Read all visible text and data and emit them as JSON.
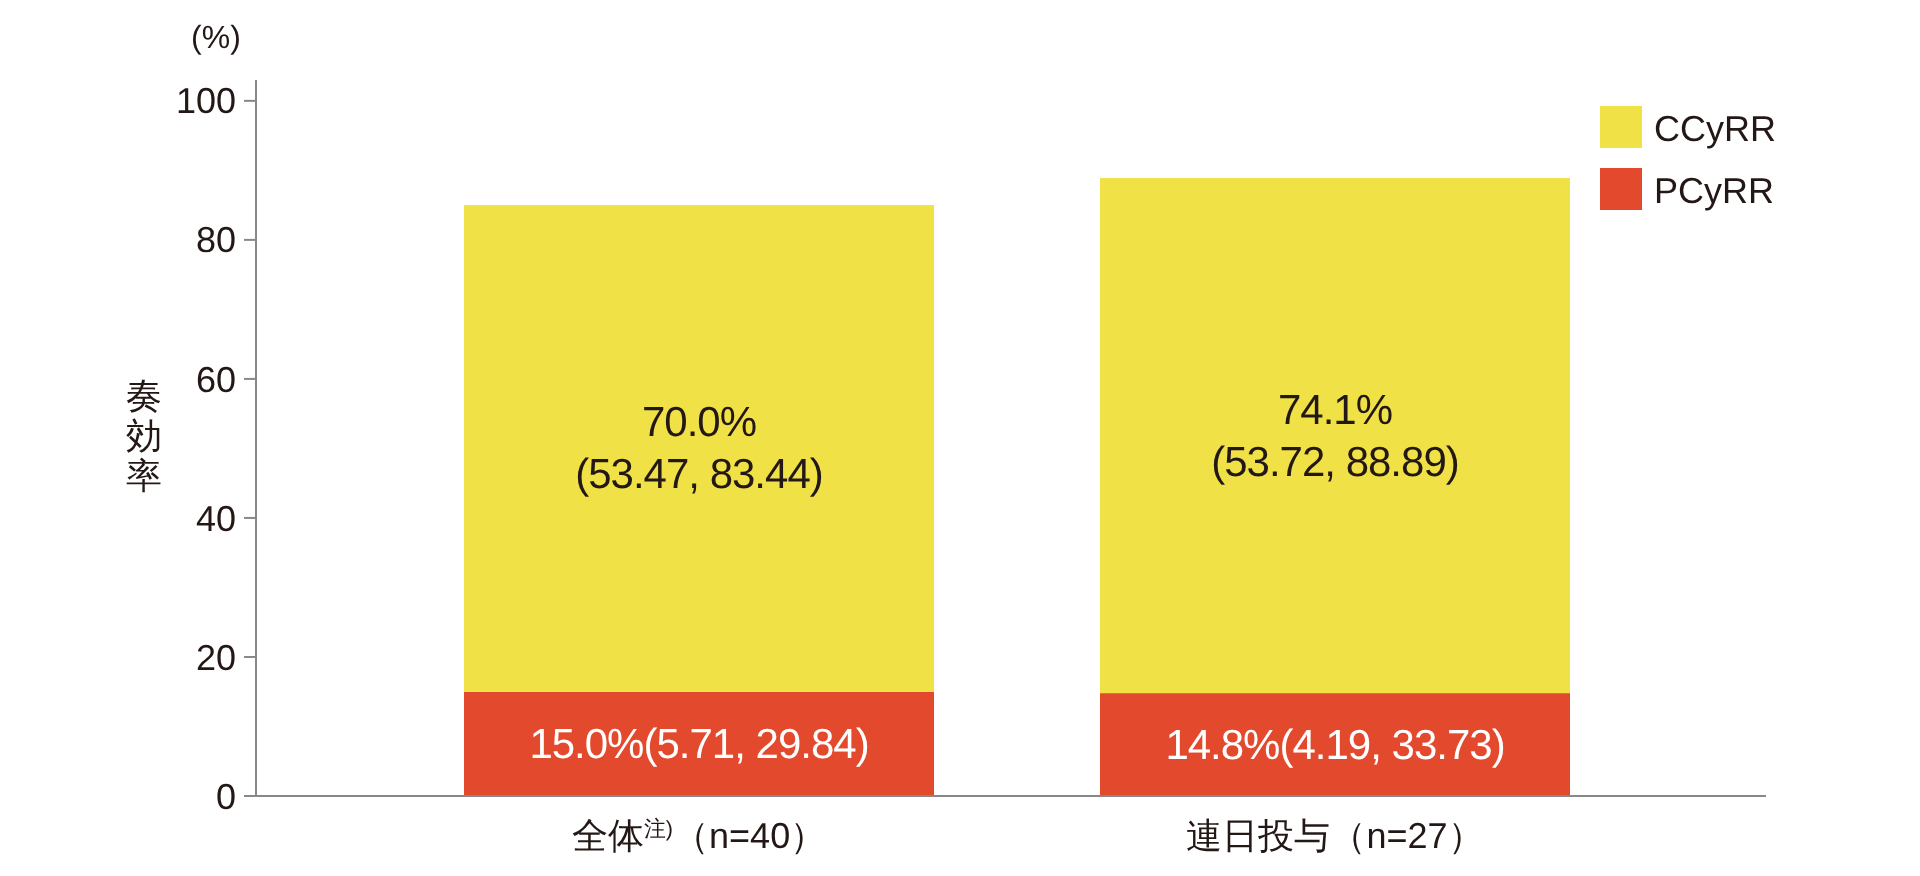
{
  "chart_data": {
    "type": "bar",
    "stacked": true,
    "ylabel": "奏効率",
    "annotations": [
      "(%)"
    ],
    "categories": [
      "全体$^{注)}$（n=40）",
      "連日投与（n=27）"
    ],
    "series": [
      {
        "name": "PCyRR",
        "color": "#e34a2d",
        "values": [
          15.0,
          14.8
        ],
        "value_labels": [
          "15.0%(5.71, 29.84)",
          "14.8%(4.19, 33.73)"
        ]
      },
      {
        "name": "CCyRR",
        "color": "#f0e246",
        "values": [
          70.0,
          74.1
        ],
        "value_labels": [
          "70.0%\n(53.47, 83.44)",
          "74.1%\n(53.72, 88.89)"
        ]
      }
    ],
    "ylim": [
      0,
      103
    ],
    "yticks": [
      0,
      20,
      40,
      60,
      80,
      100
    ],
    "grid": false,
    "legend": "top right"
  }
}
